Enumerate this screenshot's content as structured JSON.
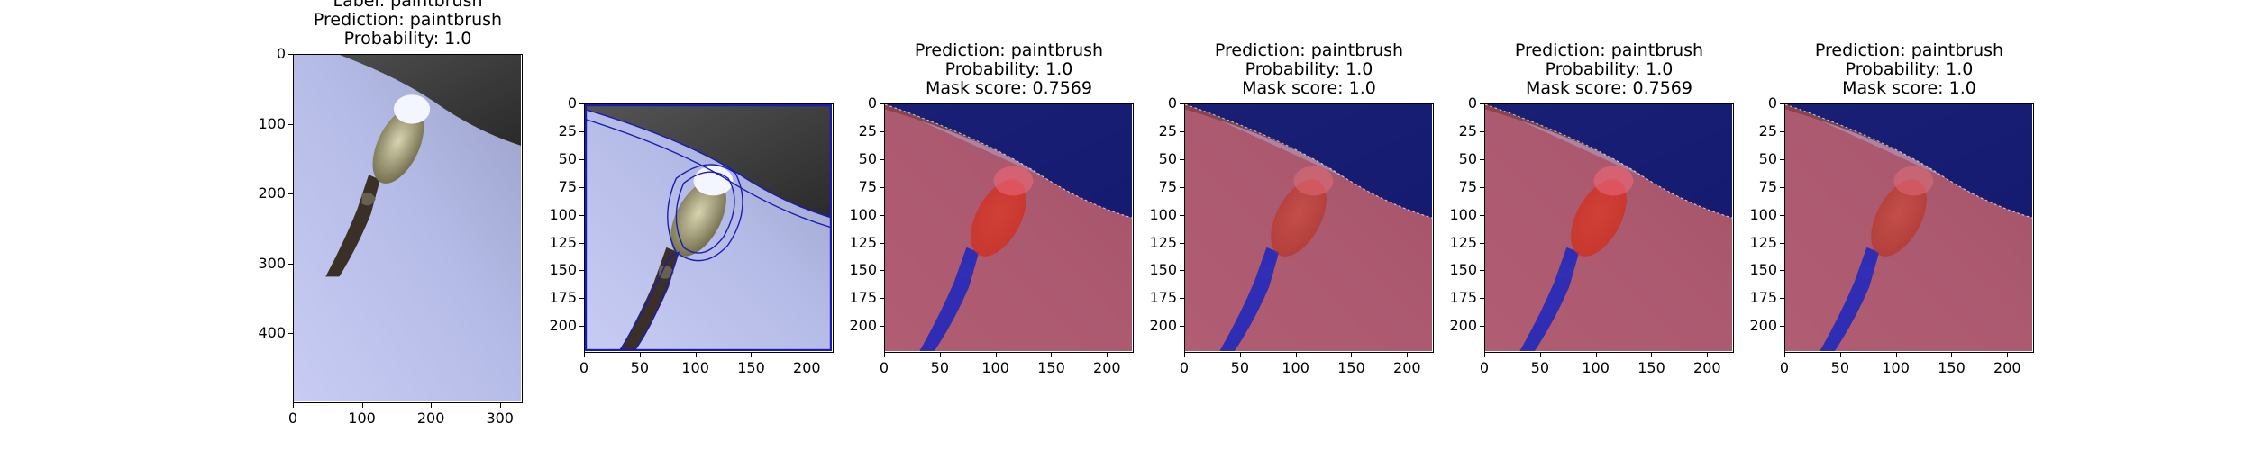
{
  "panels": [
    {
      "id": "original",
      "title_lines": [
        "Label: paintbrush",
        "Prediction: paintbrush",
        "Probability: 1.0"
      ],
      "xticks": [
        "0",
        "100",
        "200",
        "300"
      ],
      "yticks": [
        "0",
        "100",
        "200",
        "300",
        "400"
      ],
      "x_range": [
        0,
        333
      ],
      "y_range": [
        0,
        500
      ],
      "overlay": "none"
    },
    {
      "id": "contours",
      "title_lines": [],
      "xticks": [
        "0",
        "50",
        "100",
        "150",
        "200"
      ],
      "yticks": [
        "0",
        "25",
        "50",
        "75",
        "100",
        "125",
        "150",
        "175",
        "200"
      ],
      "x_range": [
        0,
        224
      ],
      "y_range": [
        0,
        224
      ],
      "overlay": "contours"
    },
    {
      "id": "mask-1",
      "title_lines": [
        "Prediction: paintbrush",
        "Probability: 1.0",
        "Mask score: 0.7569"
      ],
      "xticks": [
        "0",
        "50",
        "100",
        "150",
        "200"
      ],
      "yticks": [
        "0",
        "25",
        "50",
        "75",
        "100",
        "125",
        "150",
        "175",
        "200"
      ],
      "x_range": [
        0,
        224
      ],
      "y_range": [
        0,
        224
      ],
      "overlay": "strong"
    },
    {
      "id": "mask-2",
      "title_lines": [
        "Prediction: paintbrush",
        "Probability: 1.0",
        "Mask score: 1.0"
      ],
      "xticks": [
        "0",
        "50",
        "100",
        "150",
        "200"
      ],
      "yticks": [
        "0",
        "25",
        "50",
        "75",
        "100",
        "125",
        "150",
        "175",
        "200"
      ],
      "x_range": [
        0,
        224
      ],
      "y_range": [
        0,
        224
      ],
      "overlay": "weak"
    },
    {
      "id": "mask-3",
      "title_lines": [
        "Prediction: paintbrush",
        "Probability: 1.0",
        "Mask score: 0.7569"
      ],
      "xticks": [
        "0",
        "50",
        "100",
        "150",
        "200"
      ],
      "yticks": [
        "0",
        "25",
        "50",
        "75",
        "100",
        "125",
        "150",
        "175",
        "200"
      ],
      "x_range": [
        0,
        224
      ],
      "y_range": [
        0,
        224
      ],
      "overlay": "strong"
    },
    {
      "id": "mask-4",
      "title_lines": [
        "Prediction: paintbrush",
        "Probability: 1.0",
        "Mask score: 1.0"
      ],
      "xticks": [
        "0",
        "50",
        "100",
        "150",
        "200"
      ],
      "yticks": [
        "0",
        "25",
        "50",
        "75",
        "100",
        "125",
        "150",
        "175",
        "200"
      ],
      "x_range": [
        0,
        224
      ],
      "y_range": [
        0,
        224
      ],
      "overlay": "weak"
    }
  ]
}
